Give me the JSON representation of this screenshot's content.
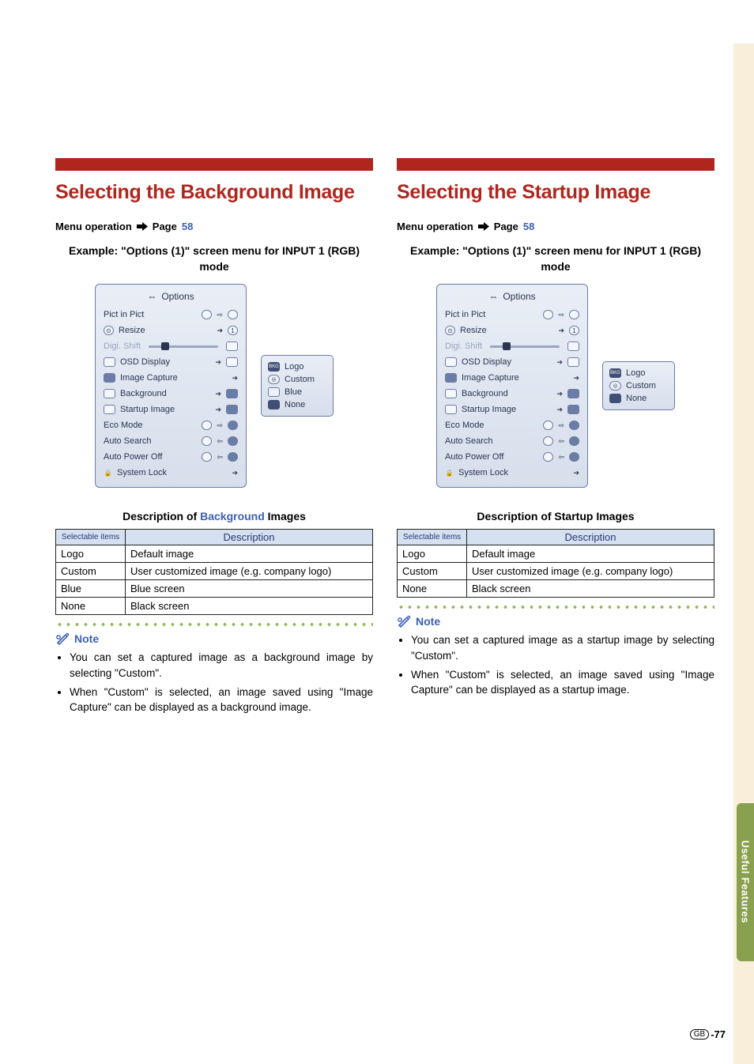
{
  "sideTabLabel": "Useful Features",
  "pageNumber": {
    "region": "GB",
    "num": "-77"
  },
  "left": {
    "title": "Selecting the Background Image",
    "menuOp": {
      "prefix": "Menu operation",
      "pageWord": "Page",
      "link": "58"
    },
    "example": "Example: \"Options (1)\" screen menu for INPUT 1 (RGB) mode",
    "osd": {
      "title": "Options",
      "rows": [
        {
          "label": "Pict in Pict",
          "type": "toggle"
        },
        {
          "label": "Resize",
          "type": "arrow-circ",
          "icon": "⊙"
        },
        {
          "label": "Digi. Shift",
          "type": "slider",
          "disabled": true
        },
        {
          "label": "OSD Display",
          "type": "arrow-icon"
        },
        {
          "label": "Image Capture",
          "type": "arrow"
        },
        {
          "label": "Background",
          "type": "arrow-icon-fill",
          "badge": "BKG"
        },
        {
          "label": "Startup Image",
          "type": "arrow-icon-fill",
          "badge": "SRT"
        },
        {
          "label": "Eco Mode",
          "type": "toggle-fill"
        },
        {
          "label": "Auto Search",
          "type": "toggle-left"
        },
        {
          "label": "Auto Power Off",
          "type": "toggle-left"
        },
        {
          "label": "System Lock",
          "type": "arrow",
          "icon": "lock"
        }
      ]
    },
    "submenu": [
      {
        "label": "Logo",
        "vis": "filltext"
      },
      {
        "label": "Custom",
        "vis": "circ"
      },
      {
        "label": "Blue",
        "vis": "empty"
      },
      {
        "label": "None",
        "vis": "black"
      }
    ],
    "tableCaption": {
      "pre": "Description of ",
      "blue": "Background",
      "post": " Images"
    },
    "table": {
      "h1": "Selectable items",
      "h2": "Description",
      "rows": [
        [
          "Logo",
          "Default image"
        ],
        [
          "Custom",
          "User customized image (e.g. company logo)"
        ],
        [
          "Blue",
          "Blue screen"
        ],
        [
          "None",
          "Black screen"
        ]
      ]
    },
    "noteLabel": "Note",
    "notes": [
      "You can set a captured image as a background image by selecting \"Custom\".",
      "When \"Custom\" is selected, an image saved using \"Image Capture\" can be displayed as a background image."
    ]
  },
  "right": {
    "title": "Selecting the Startup Image",
    "menuOp": {
      "prefix": "Menu operation",
      "pageWord": "Page",
      "link": "58"
    },
    "example": "Example: \"Options (1)\" screen menu for INPUT 1 (RGB) mode",
    "osd": {
      "title": "Options",
      "rows": [
        {
          "label": "Pict in Pict",
          "type": "toggle"
        },
        {
          "label": "Resize",
          "type": "arrow-circ",
          "icon": "⊙"
        },
        {
          "label": "Digi. Shift",
          "type": "slider",
          "disabled": true
        },
        {
          "label": "OSD Display",
          "type": "arrow-icon"
        },
        {
          "label": "Image Capture",
          "type": "arrow"
        },
        {
          "label": "Background",
          "type": "arrow-icon-fill",
          "badge": "BKG"
        },
        {
          "label": "Startup Image",
          "type": "arrow-icon-fill",
          "badge": "SRT"
        },
        {
          "label": "Eco Mode",
          "type": "toggle-fill"
        },
        {
          "label": "Auto Search",
          "type": "toggle-left"
        },
        {
          "label": "Auto Power Off",
          "type": "toggle-left"
        },
        {
          "label": "System Lock",
          "type": "arrow",
          "icon": "lock"
        }
      ]
    },
    "submenu": [
      {
        "label": "Logo",
        "vis": "filltext"
      },
      {
        "label": "Custom",
        "vis": "circ"
      },
      {
        "label": "None",
        "vis": "black"
      }
    ],
    "tableCaption": {
      "pre": "Description of Startup Images"
    },
    "table": {
      "h1": "Selectable items",
      "h2": "Description",
      "rows": [
        [
          "Logo",
          "Default image"
        ],
        [
          "Custom",
          "User customized image (e.g. company logo)"
        ],
        [
          "None",
          "Black screen"
        ]
      ]
    },
    "noteLabel": "Note",
    "notes": [
      "You can set a captured image as a startup image by selecting \"Custom\".",
      "When \"Custom\" is selected, an image saved using \"Image Capture\" can be displayed as a startup image."
    ]
  }
}
